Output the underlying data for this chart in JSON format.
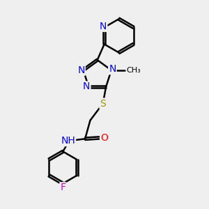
{
  "bg_color": "#efefef",
  "bond_color": "#000000",
  "bond_width": 1.8,
  "atom_colors": {
    "N": "#0000ff",
    "O": "#ff0000",
    "S": "#999900",
    "F": "#cc00cc",
    "C": "#000000",
    "H": "#444444"
  },
  "font_size": 10
}
